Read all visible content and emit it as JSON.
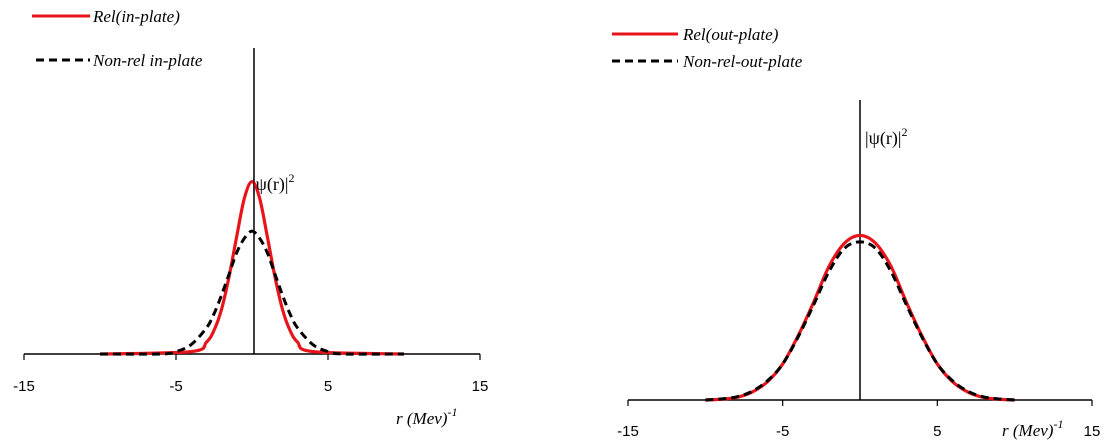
{
  "chart_data": [
    {
      "type": "line",
      "title": "",
      "xlabel": "r  (Mev)-1",
      "xlabel_main": "r  (Mev)",
      "xlabel_sup": "-1",
      "ylabel": "|ψ(r)|2",
      "ylabel_main": "|ψ(r)|",
      "ylabel_sup": "2",
      "xlim": [
        -15,
        15
      ],
      "ylim": [
        0,
        1.05
      ],
      "xticks": [
        "-15",
        "-5",
        "5",
        "15"
      ],
      "xtick_values": [
        -15,
        -5,
        5,
        15
      ],
      "grid": false,
      "legend_position": "top-left",
      "series": [
        {
          "name": "Rel(in-plate)",
          "color": "#e8141b",
          "dash": "solid",
          "x": [
            -10,
            -4,
            -3,
            -2.5,
            -2,
            -1.5,
            -1,
            -0.5,
            0,
            0.5,
            1,
            1.5,
            2,
            2.5,
            3,
            4,
            10
          ],
          "y": [
            0,
            0.01,
            0.05,
            0.1,
            0.19,
            0.33,
            0.5,
            0.66,
            0.73,
            0.66,
            0.5,
            0.33,
            0.19,
            0.1,
            0.05,
            0.01,
            0
          ]
        },
        {
          "name": "Non-rel in-plate",
          "color": "#000000",
          "dash": "dashed",
          "x": [
            -10,
            -6,
            -5,
            -4,
            -3,
            -2.5,
            -2,
            -1.5,
            -1,
            -0.5,
            0,
            0.5,
            1,
            1.5,
            2,
            2.5,
            3,
            4,
            5,
            6,
            10
          ],
          "y": [
            0,
            0,
            0.01,
            0.04,
            0.11,
            0.17,
            0.25,
            0.34,
            0.43,
            0.49,
            0.52,
            0.49,
            0.43,
            0.34,
            0.25,
            0.17,
            0.11,
            0.04,
            0.01,
            0,
            0
          ]
        }
      ]
    },
    {
      "type": "line",
      "title": "",
      "xlabel": "r  (Mev)-1",
      "xlabel_main": "r  (Mev)",
      "xlabel_sup": "-1",
      "ylabel": "|ψ(r)|2",
      "ylabel_main": "|ψ(r)|",
      "ylabel_sup": "2",
      "xlim": [
        -15,
        15
      ],
      "ylim": [
        0,
        1.05
      ],
      "xticks": [
        "-15",
        "-5",
        "5",
        "15"
      ],
      "xtick_values": [
        -15,
        -5,
        5,
        15
      ],
      "grid": false,
      "legend_position": "top-left",
      "series": [
        {
          "name": "Rel(out-plate)",
          "color": "#e8141b",
          "dash": "solid",
          "x": [
            -10,
            -9,
            -8,
            -7,
            -6,
            -5,
            -4,
            -3,
            -2,
            -1,
            0,
            1,
            2,
            3,
            4,
            5,
            6,
            7,
            8,
            9,
            10
          ],
          "y": [
            0,
            0.003,
            0.01,
            0.03,
            0.07,
            0.14,
            0.25,
            0.38,
            0.52,
            0.61,
            0.64,
            0.61,
            0.52,
            0.38,
            0.25,
            0.14,
            0.07,
            0.03,
            0.01,
            0.003,
            0
          ]
        },
        {
          "name": "Non-rel-out-plate",
          "color": "#000000",
          "dash": "dashed",
          "x": [
            -10,
            -9,
            -8,
            -7,
            -6,
            -5,
            -4,
            -3,
            -2,
            -1,
            0,
            1,
            2,
            3,
            4,
            5,
            6,
            7,
            8,
            9,
            10
          ],
          "y": [
            0,
            0.004,
            0.012,
            0.033,
            0.074,
            0.14,
            0.245,
            0.37,
            0.5,
            0.59,
            0.615,
            0.59,
            0.5,
            0.37,
            0.245,
            0.14,
            0.074,
            0.033,
            0.012,
            0.004,
            0
          ]
        }
      ]
    }
  ]
}
